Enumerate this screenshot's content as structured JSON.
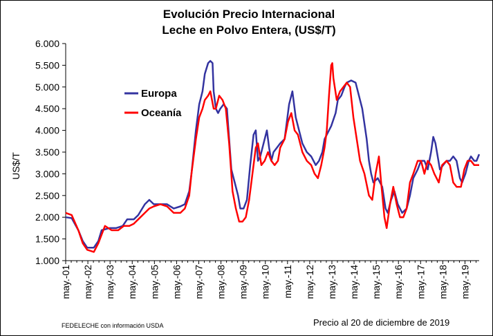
{
  "colors": {
    "europa": "#3333A0",
    "oceania": "#FF0000",
    "axis": "#000000"
  },
  "footer": {
    "source": "FEDELECHE con información USDA",
    "note": "Precio al 20 de diciembre de 2019"
  },
  "chart_data": {
    "type": "line",
    "title": "Evolución Precio Internacional",
    "subtitle": "Leche en Polvo Entera, (US$/T)",
    "xlabel": "",
    "ylabel": "US$/T",
    "ylim": [
      1000,
      6000
    ],
    "yticks": [
      "1.000",
      "1.500",
      "2.000",
      "2.500",
      "3.000",
      "3.500",
      "4.000",
      "4.500",
      "5.000",
      "5.500",
      "6.000"
    ],
    "xticks": [
      "may.-01",
      "may.-02",
      "may.-03",
      "may.-04",
      "may.-05",
      "may.-06",
      "may.-07",
      "may.-08",
      "may.-09",
      "may.-10",
      "may.-11",
      "may.-12",
      "may.-13",
      "may.-14",
      "may.-15",
      "may.-16",
      "may.-17",
      "may.-18",
      "may.-19"
    ],
    "xlim": [
      2001.33,
      2019.97
    ],
    "grid": false,
    "legend": "upper-left",
    "series": [
      {
        "name": "Europa",
        "points": [
          [
            2001.33,
            2000
          ],
          [
            2001.6,
            1980
          ],
          [
            2001.9,
            1700
          ],
          [
            2002.1,
            1450
          ],
          [
            2002.3,
            1300
          ],
          [
            2002.6,
            1300
          ],
          [
            2002.8,
            1450
          ],
          [
            2002.95,
            1700
          ],
          [
            2003.3,
            1750
          ],
          [
            2003.6,
            1750
          ],
          [
            2003.9,
            1800
          ],
          [
            2004.1,
            1950
          ],
          [
            2004.4,
            1950
          ],
          [
            2004.6,
            2050
          ],
          [
            2004.9,
            2300
          ],
          [
            2005.1,
            2400
          ],
          [
            2005.3,
            2300
          ],
          [
            2005.6,
            2300
          ],
          [
            2005.9,
            2300
          ],
          [
            2006.2,
            2200
          ],
          [
            2006.5,
            2250
          ],
          [
            2006.7,
            2300
          ],
          [
            2006.9,
            2600
          ],
          [
            2007.0,
            3000
          ],
          [
            2007.2,
            4000
          ],
          [
            2007.35,
            4600
          ],
          [
            2007.5,
            4900
          ],
          [
            2007.6,
            5300
          ],
          [
            2007.75,
            5550
          ],
          [
            2007.85,
            5600
          ],
          [
            2007.95,
            5550
          ],
          [
            2008.0,
            4900
          ],
          [
            2008.1,
            4500
          ],
          [
            2008.2,
            4400
          ],
          [
            2008.3,
            4500
          ],
          [
            2008.45,
            4600
          ],
          [
            2008.6,
            4500
          ],
          [
            2008.7,
            3800
          ],
          [
            2008.8,
            3100
          ],
          [
            2008.95,
            2800
          ],
          [
            2009.1,
            2500
          ],
          [
            2009.2,
            2200
          ],
          [
            2009.35,
            2200
          ],
          [
            2009.5,
            2400
          ],
          [
            2009.65,
            3200
          ],
          [
            2009.8,
            3900
          ],
          [
            2009.9,
            4000
          ],
          [
            2010.0,
            3300
          ],
          [
            2010.1,
            3400
          ],
          [
            2010.25,
            3700
          ],
          [
            2010.4,
            4000
          ],
          [
            2010.5,
            3600
          ],
          [
            2010.6,
            3300
          ],
          [
            2010.7,
            3500
          ],
          [
            2010.85,
            3600
          ],
          [
            2011.0,
            3700
          ],
          [
            2011.2,
            3800
          ],
          [
            2011.4,
            4600
          ],
          [
            2011.5,
            4800
          ],
          [
            2011.55,
            4900
          ],
          [
            2011.7,
            4300
          ],
          [
            2011.85,
            4000
          ],
          [
            2012.0,
            3700
          ],
          [
            2012.2,
            3500
          ],
          [
            2012.4,
            3400
          ],
          [
            2012.5,
            3300
          ],
          [
            2012.6,
            3200
          ],
          [
            2012.75,
            3300
          ],
          [
            2012.9,
            3500
          ],
          [
            2013.0,
            3800
          ],
          [
            2013.2,
            4000
          ],
          [
            2013.3,
            4100
          ],
          [
            2013.5,
            4400
          ],
          [
            2013.6,
            4700
          ],
          [
            2013.75,
            4800
          ],
          [
            2013.9,
            5000
          ],
          [
            2014.0,
            5100
          ],
          [
            2014.2,
            5150
          ],
          [
            2014.4,
            5100
          ],
          [
            2014.5,
            4900
          ],
          [
            2014.7,
            4500
          ],
          [
            2014.9,
            3800
          ],
          [
            2015.0,
            3300
          ],
          [
            2015.1,
            3000
          ],
          [
            2015.2,
            2800
          ],
          [
            2015.4,
            2900
          ],
          [
            2015.6,
            2700
          ],
          [
            2015.75,
            2200
          ],
          [
            2015.85,
            2100
          ],
          [
            2016.0,
            2400
          ],
          [
            2016.15,
            2600
          ],
          [
            2016.3,
            2300
          ],
          [
            2016.5,
            2100
          ],
          [
            2016.7,
            2200
          ],
          [
            2016.85,
            2500
          ],
          [
            2017.0,
            2900
          ],
          [
            2017.2,
            3100
          ],
          [
            2017.35,
            3300
          ],
          [
            2017.5,
            3300
          ],
          [
            2017.65,
            3100
          ],
          [
            2017.8,
            3500
          ],
          [
            2017.9,
            3850
          ],
          [
            2018.0,
            3700
          ],
          [
            2018.2,
            3100
          ],
          [
            2018.35,
            3200
          ],
          [
            2018.5,
            3300
          ],
          [
            2018.65,
            3300
          ],
          [
            2018.8,
            3400
          ],
          [
            2018.95,
            3300
          ],
          [
            2019.1,
            2900
          ],
          [
            2019.2,
            2800
          ],
          [
            2019.35,
            3000
          ],
          [
            2019.5,
            3300
          ],
          [
            2019.6,
            3400
          ],
          [
            2019.75,
            3300
          ],
          [
            2019.85,
            3300
          ],
          [
            2019.97,
            3450
          ]
        ]
      },
      {
        "name": "Oceanía",
        "points": [
          [
            2001.33,
            2100
          ],
          [
            2001.6,
            2050
          ],
          [
            2001.9,
            1700
          ],
          [
            2002.1,
            1400
          ],
          [
            2002.3,
            1250
          ],
          [
            2002.6,
            1200
          ],
          [
            2002.8,
            1400
          ],
          [
            2002.95,
            1600
          ],
          [
            2003.1,
            1800
          ],
          [
            2003.4,
            1700
          ],
          [
            2003.7,
            1700
          ],
          [
            2003.95,
            1800
          ],
          [
            2004.2,
            1800
          ],
          [
            2004.4,
            1850
          ],
          [
            2004.6,
            1950
          ],
          [
            2004.9,
            2100
          ],
          [
            2005.1,
            2200
          ],
          [
            2005.3,
            2250
          ],
          [
            2005.6,
            2300
          ],
          [
            2005.9,
            2250
          ],
          [
            2006.2,
            2100
          ],
          [
            2006.5,
            2100
          ],
          [
            2006.7,
            2200
          ],
          [
            2006.9,
            2500
          ],
          [
            2007.0,
            3000
          ],
          [
            2007.2,
            3800
          ],
          [
            2007.35,
            4300
          ],
          [
            2007.5,
            4500
          ],
          [
            2007.6,
            4700
          ],
          [
            2007.75,
            4800
          ],
          [
            2007.85,
            4900
          ],
          [
            2008.0,
            4500
          ],
          [
            2008.1,
            4500
          ],
          [
            2008.25,
            4800
          ],
          [
            2008.4,
            4700
          ],
          [
            2008.55,
            4500
          ],
          [
            2008.7,
            3700
          ],
          [
            2008.85,
            2600
          ],
          [
            2009.0,
            2200
          ],
          [
            2009.15,
            1900
          ],
          [
            2009.3,
            1900
          ],
          [
            2009.45,
            2000
          ],
          [
            2009.6,
            2400
          ],
          [
            2009.75,
            3000
          ],
          [
            2009.9,
            3600
          ],
          [
            2010.0,
            3700
          ],
          [
            2010.15,
            3200
          ],
          [
            2010.3,
            3300
          ],
          [
            2010.45,
            3500
          ],
          [
            2010.6,
            3300
          ],
          [
            2010.75,
            3200
          ],
          [
            2010.9,
            3300
          ],
          [
            2011.0,
            3600
          ],
          [
            2011.2,
            3800
          ],
          [
            2011.35,
            4200
          ],
          [
            2011.5,
            4400
          ],
          [
            2011.65,
            4000
          ],
          [
            2011.8,
            3900
          ],
          [
            2012.0,
            3500
          ],
          [
            2012.2,
            3300
          ],
          [
            2012.4,
            3200
          ],
          [
            2012.55,
            3000
          ],
          [
            2012.7,
            2900
          ],
          [
            2012.85,
            3200
          ],
          [
            2013.0,
            3600
          ],
          [
            2013.1,
            4000
          ],
          [
            2013.2,
            4800
          ],
          [
            2013.3,
            5500
          ],
          [
            2013.35,
            5550
          ],
          [
            2013.4,
            5200
          ],
          [
            2013.55,
            4700
          ],
          [
            2013.7,
            4900
          ],
          [
            2013.85,
            5000
          ],
          [
            2014.0,
            5100
          ],
          [
            2014.15,
            5000
          ],
          [
            2014.3,
            4300
          ],
          [
            2014.45,
            3800
          ],
          [
            2014.6,
            3300
          ],
          [
            2014.8,
            3000
          ],
          [
            2015.0,
            2500
          ],
          [
            2015.15,
            2400
          ],
          [
            2015.3,
            3000
          ],
          [
            2015.45,
            3400
          ],
          [
            2015.55,
            2800
          ],
          [
            2015.7,
            2000
          ],
          [
            2015.8,
            1750
          ],
          [
            2015.95,
            2300
          ],
          [
            2016.1,
            2700
          ],
          [
            2016.25,
            2300
          ],
          [
            2016.4,
            2000
          ],
          [
            2016.55,
            2000
          ],
          [
            2016.7,
            2200
          ],
          [
            2016.85,
            2800
          ],
          [
            2017.0,
            3000
          ],
          [
            2017.2,
            3300
          ],
          [
            2017.35,
            3300
          ],
          [
            2017.5,
            3000
          ],
          [
            2017.65,
            3300
          ],
          [
            2017.8,
            3200
          ],
          [
            2017.95,
            3000
          ],
          [
            2018.15,
            2800
          ],
          [
            2018.3,
            3200
          ],
          [
            2018.5,
            3300
          ],
          [
            2018.65,
            3200
          ],
          [
            2018.8,
            2800
          ],
          [
            2018.95,
            2700
          ],
          [
            2019.15,
            2700
          ],
          [
            2019.3,
            3100
          ],
          [
            2019.45,
            3300
          ],
          [
            2019.6,
            3300
          ],
          [
            2019.75,
            3200
          ],
          [
            2019.85,
            3200
          ],
          [
            2019.97,
            3200
          ]
        ]
      }
    ]
  }
}
